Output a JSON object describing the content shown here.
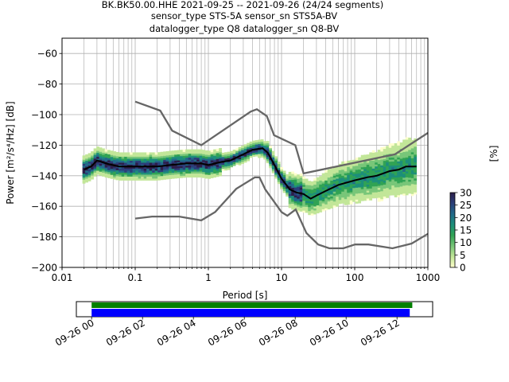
{
  "chart_data": [
    {
      "type": "heatmap",
      "title_lines": [
        "BK.BK50.00.HHE   2021-09-25 -- 2021-09-26  (24/24 segments)",
        "sensor_type STS-5A sensor_sn STS5A-BV",
        "datalogger_type Q8 datalogger_sn Q8-BV"
      ],
      "xlabel": "Period [s]",
      "ylabel": "Power [m²/s⁴/Hz] [dB]",
      "xscale": "log",
      "xlim": [
        0.01,
        1000
      ],
      "ylim": [
        -200,
        -50
      ],
      "grid": true,
      "x_ticks": [
        {
          "value": 0.01,
          "label": "0.01"
        },
        {
          "value": 0.1,
          "label": "0.1"
        },
        {
          "value": 1,
          "label": "1"
        },
        {
          "value": 10,
          "label": "10"
        },
        {
          "value": 100,
          "label": "100"
        },
        {
          "value": 1000,
          "label": "1000"
        }
      ],
      "y_ticks": [
        -60,
        -80,
        -100,
        -120,
        -140,
        -160,
        -180,
        -200
      ],
      "colorbar": {
        "label": "[%]",
        "min": 0,
        "max": 30,
        "ticks": [
          0,
          5,
          10,
          15,
          20,
          25,
          30
        ],
        "colors": [
          "#ffffcc",
          "#c2e699",
          "#78c679",
          "#31a354",
          "#1d8f7a",
          "#226a8a",
          "#2b3f7a",
          "#2d1f4a"
        ]
      },
      "series": [
        {
          "role": "new-high-noise-model",
          "color": "#666666",
          "x": [
            0.1,
            0.22,
            0.32,
            0.8,
            3.8,
            4.6,
            6.3,
            7.9,
            15.4,
            20,
            354.8,
            1000
          ],
          "y": [
            -91.5,
            -97.4,
            -110.5,
            -120,
            -98,
            -96.5,
            -101,
            -113.5,
            -120,
            -138.5,
            -126,
            -112
          ]
        },
        {
          "role": "new-low-noise-model",
          "color": "#666666",
          "x": [
            0.1,
            0.17,
            0.4,
            0.8,
            1.24,
            2.4,
            4.3,
            5,
            6,
            10,
            12,
            15.6,
            21.9,
            31.6,
            45,
            70,
            101,
            154,
            328,
            600,
            1000
          ],
          "y": [
            -168,
            -166.7,
            -166.7,
            -169.2,
            -163.7,
            -148.6,
            -141.1,
            -141.1,
            -149,
            -163.8,
            -166.2,
            -162.1,
            -177.5,
            -185,
            -187.5,
            -187.5,
            -185,
            -185,
            -187.5,
            -184.4,
            -178
          ]
        },
        {
          "role": "mode",
          "color": "#000000",
          "x": [
            0.02,
            0.025,
            0.03,
            0.04,
            0.06,
            0.1,
            0.2,
            0.3,
            0.5,
            0.8,
            1.0,
            1.5,
            2.0,
            3.0,
            4.0,
            5.5,
            6.5,
            8.0,
            10,
            13,
            16,
            20,
            25,
            30,
            40,
            60,
            100,
            150,
            200,
            300,
            400,
            500,
            700
          ],
          "y": [
            -136,
            -134,
            -130,
            -132,
            -134,
            -134,
            -134,
            -133,
            -132,
            -132,
            -133,
            -131,
            -130,
            -126,
            -123,
            -122,
            -125,
            -133,
            -142,
            -149,
            -151,
            -152,
            -155,
            -153,
            -150,
            -146,
            -143,
            -141,
            -140,
            -137,
            -136,
            -134,
            -134
          ]
        }
      ]
    },
    {
      "type": "timeline",
      "x_ticks": [
        "09-26 00",
        "09-26 02",
        "09-26 04",
        "09-26 06",
        "09-26 08",
        "09-26 10",
        "09-26 12"
      ],
      "x_tick_hours": [
        0,
        2,
        4,
        6,
        8,
        10,
        12
      ],
      "xlim_hours": [
        -0.6,
        13.4
      ],
      "bars": [
        {
          "role": "available-data",
          "color": "#008000",
          "start_hours": 0,
          "end_hours": 12.6
        },
        {
          "role": "used-segments",
          "color": "#0000ff",
          "start_hours": 0,
          "end_hours": 12.5
        }
      ]
    }
  ]
}
